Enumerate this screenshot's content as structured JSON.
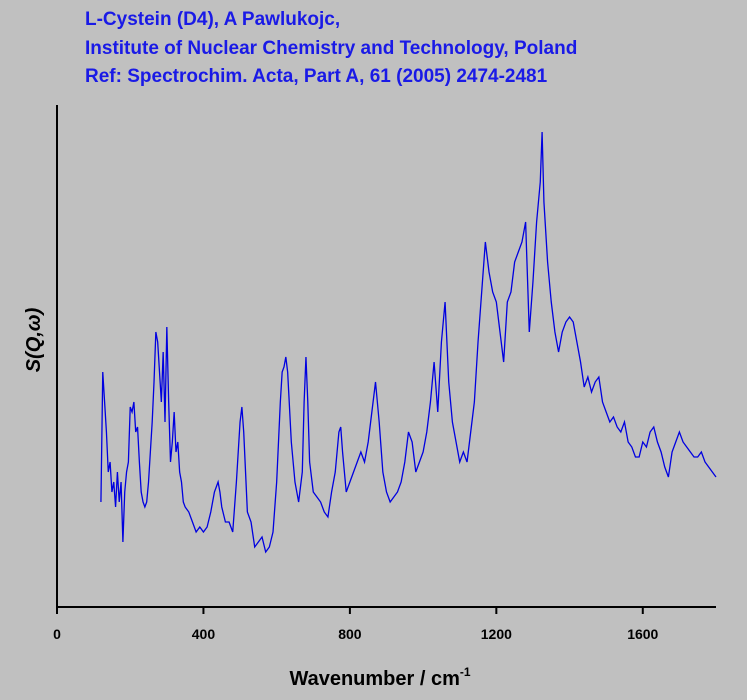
{
  "chart_data": {
    "type": "line",
    "title_lines": [
      "L-Cystein (D4), A Pawlukojc,",
      "Institute of Nuclear Chemistry and Technology, Poland",
      "Ref: Spectrochim. Acta, Part A, 61 (2005) 2474-2481"
    ],
    "xlabel": "Wavenumber / cm",
    "xlabel_sup": "-1",
    "ylabel": "S(Q,ω)",
    "xlim": [
      0,
      1800
    ],
    "xticks": [
      0,
      400,
      800,
      1200,
      1600
    ],
    "ylim": [
      0,
      100
    ],
    "x": [
      120,
      125,
      130,
      135,
      140,
      145,
      150,
      155,
      160,
      165,
      170,
      175,
      180,
      185,
      190,
      195,
      200,
      205,
      210,
      215,
      220,
      225,
      230,
      235,
      240,
      245,
      250,
      255,
      260,
      265,
      270,
      275,
      280,
      285,
      290,
      295,
      300,
      305,
      310,
      315,
      320,
      325,
      330,
      335,
      340,
      345,
      350,
      360,
      370,
      380,
      390,
      400,
      410,
      420,
      430,
      440,
      445,
      450,
      460,
      470,
      480,
      490,
      500,
      505,
      510,
      520,
      530,
      540,
      550,
      560,
      570,
      580,
      590,
      600,
      610,
      615,
      620,
      625,
      630,
      640,
      650,
      660,
      670,
      675,
      680,
      685,
      690,
      700,
      710,
      720,
      730,
      740,
      750,
      760,
      770,
      775,
      780,
      790,
      800,
      810,
      820,
      830,
      840,
      850,
      860,
      870,
      880,
      890,
      900,
      910,
      920,
      930,
      940,
      950,
      960,
      970,
      980,
      990,
      1000,
      1010,
      1020,
      1030,
      1040,
      1050,
      1060,
      1070,
      1080,
      1090,
      1100,
      1110,
      1120,
      1130,
      1140,
      1150,
      1160,
      1170,
      1180,
      1190,
      1200,
      1210,
      1220,
      1230,
      1240,
      1250,
      1260,
      1270,
      1280,
      1290,
      1300,
      1310,
      1320,
      1325,
      1330,
      1340,
      1350,
      1360,
      1370,
      1380,
      1390,
      1400,
      1410,
      1420,
      1430,
      1440,
      1450,
      1460,
      1470,
      1480,
      1490,
      1500,
      1510,
      1520,
      1530,
      1540,
      1550,
      1560,
      1570,
      1580,
      1590,
      1600,
      1610,
      1620,
      1630,
      1640,
      1650,
      1660,
      1670,
      1680,
      1690,
      1700,
      1710,
      1720,
      1730,
      1740,
      1750,
      1760,
      1770,
      1780,
      1790,
      1800
    ],
    "series": [
      {
        "color": "#0000e0",
        "values": [
          21,
          47,
          41,
          35,
          27,
          29,
          23,
          25,
          20,
          27,
          21,
          25,
          13,
          23,
          27,
          29,
          40,
          39,
          41,
          35,
          36,
          29,
          23,
          21,
          20,
          21,
          25,
          31,
          37,
          45,
          55,
          53,
          47,
          41,
          51,
          37,
          56,
          41,
          29,
          33,
          39,
          31,
          33,
          27,
          25,
          21,
          20,
          19,
          17,
          15,
          16,
          15,
          16,
          19,
          23,
          25,
          23,
          20,
          17,
          17,
          15,
          25,
          37,
          40,
          35,
          19,
          17,
          12,
          13,
          14,
          11,
          12,
          15,
          25,
          41,
          47,
          48,
          50,
          47,
          33,
          25,
          21,
          27,
          41,
          50,
          41,
          29,
          23,
          22,
          21,
          19,
          18,
          23,
          27,
          35,
          36,
          31,
          23,
          25,
          27,
          29,
          31,
          29,
          33,
          39,
          45,
          37,
          27,
          23,
          21,
          22,
          23,
          25,
          29,
          35,
          33,
          27,
          29,
          31,
          35,
          41,
          49,
          39,
          53,
          61,
          45,
          37,
          33,
          29,
          31,
          29,
          35,
          41,
          53,
          63,
          73,
          67,
          63,
          61,
          55,
          49,
          61,
          63,
          69,
          71,
          73,
          77,
          55,
          65,
          77,
          85,
          95,
          81,
          69,
          61,
          55,
          51,
          55,
          57,
          58,
          57,
          53,
          49,
          44,
          46,
          43,
          45,
          46,
          41,
          39,
          37,
          38,
          36,
          35,
          37,
          33,
          32,
          30,
          30,
          33,
          32,
          35,
          36,
          33,
          31,
          28,
          26,
          31,
          33,
          35,
          33,
          32,
          31,
          30,
          30,
          31,
          29,
          28,
          27,
          26
        ]
      }
    ]
  }
}
